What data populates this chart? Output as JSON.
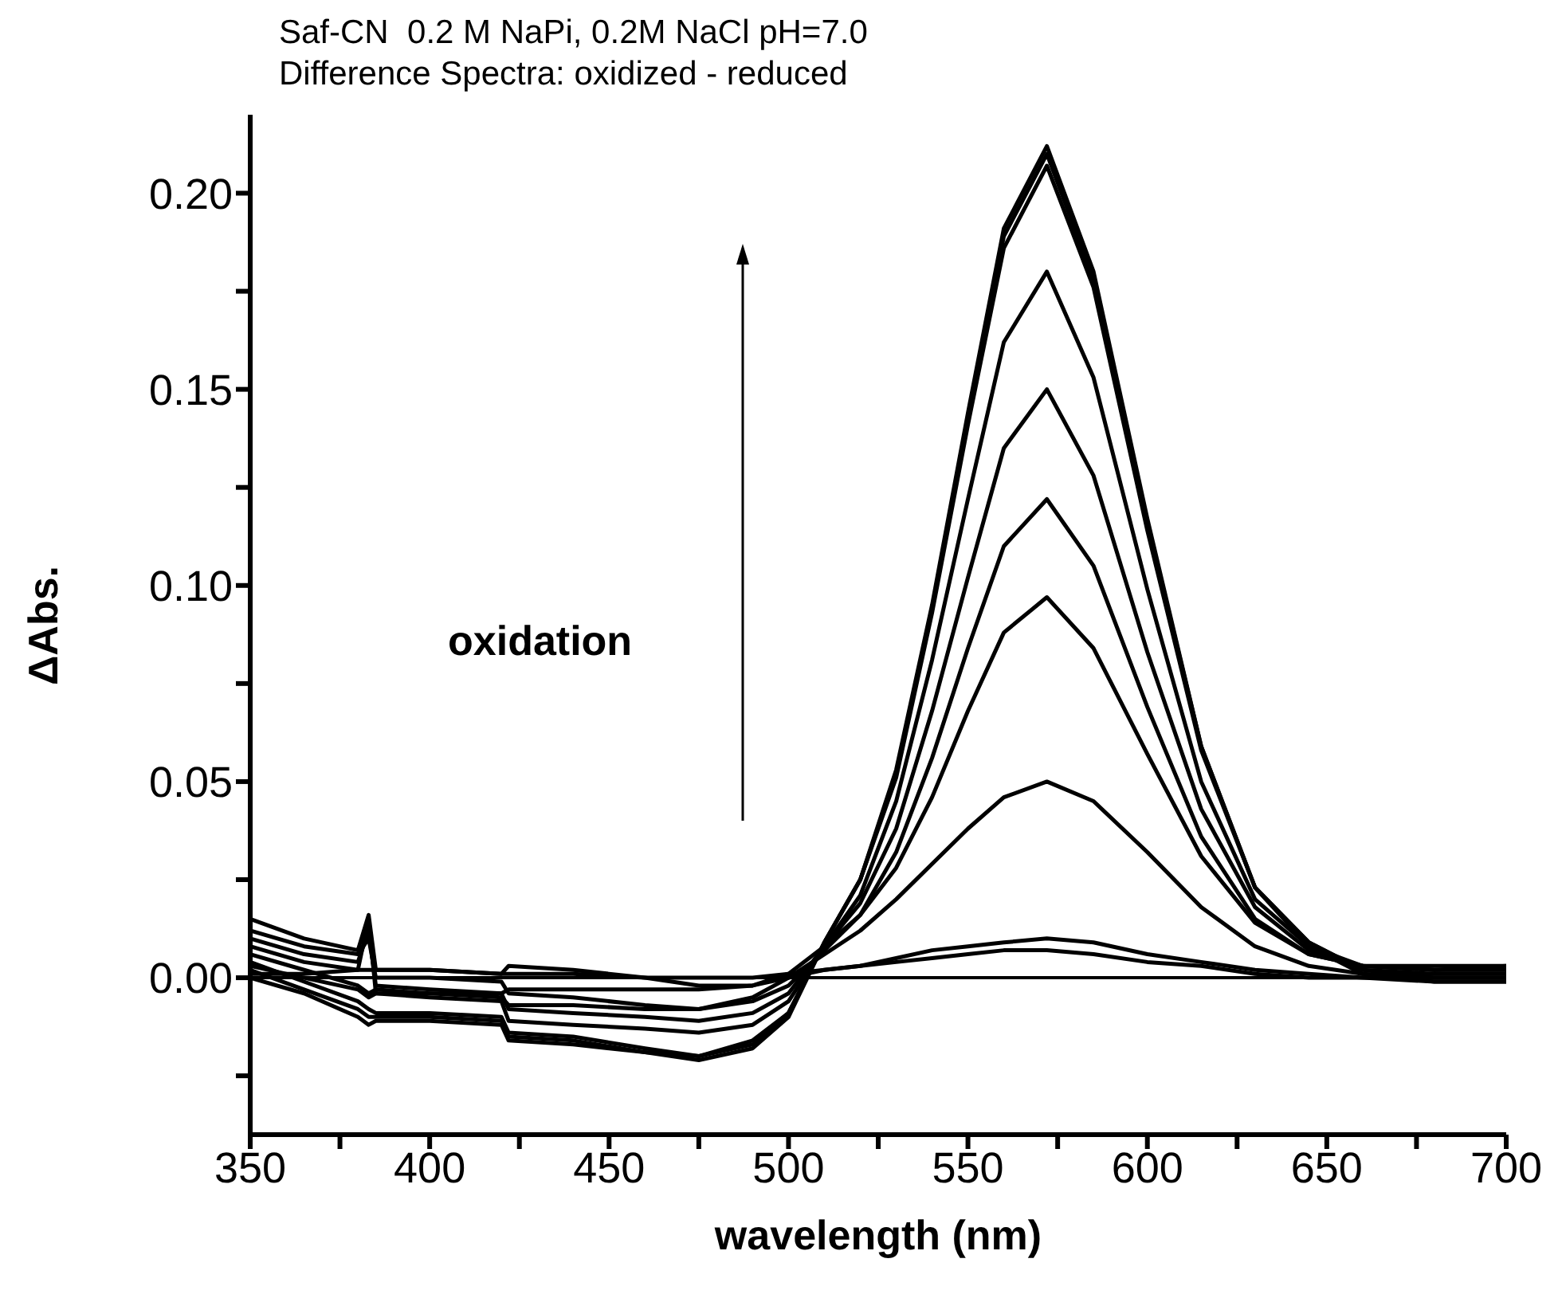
{
  "chart_data": {
    "type": "line",
    "title": "Saf-CN  0.2 M NaPi, 0.2M NaCl pH=7.0",
    "subtitle": "Difference Spectra: oxidized - reduced",
    "xlabel": "wavelength (nm)",
    "ylabel": "ΔAbs.",
    "annotations": [
      "oxidation"
    ],
    "x": [
      350,
      365,
      380,
      383,
      385,
      400,
      420,
      422,
      440,
      460,
      475,
      490,
      500,
      510,
      520,
      530,
      540,
      550,
      560,
      572,
      585,
      600,
      615,
      630,
      645,
      660,
      680,
      700
    ],
    "series": [
      {
        "color": "#000000",
        "values": [
          0.001,
          0.001,
          0.002,
          0.002,
          0.002,
          0.002,
          0.001,
          0.001,
          0.001,
          0.0,
          0.0,
          0.0,
          0.001,
          0.002,
          0.003,
          0.004,
          0.005,
          0.006,
          0.007,
          0.007,
          0.006,
          0.004,
          0.003,
          0.001,
          0.0,
          0.0,
          0.0,
          0.0
        ]
      },
      {
        "color": "#000000",
        "values": [
          0.003,
          0.0,
          -0.003,
          -0.005,
          -0.004,
          -0.004,
          -0.004,
          -0.003,
          -0.003,
          -0.003,
          -0.003,
          -0.002,
          0.0,
          0.002,
          0.003,
          0.005,
          0.007,
          0.008,
          0.009,
          0.01,
          0.009,
          0.006,
          0.004,
          0.002,
          0.001,
          0.0,
          -0.001,
          -0.001
        ]
      },
      {
        "color": "#000000",
        "values": [
          0.006,
          0.002,
          -0.002,
          -0.004,
          -0.003,
          -0.004,
          -0.005,
          -0.007,
          -0.007,
          -0.008,
          -0.008,
          -0.005,
          0.0,
          0.006,
          0.012,
          0.02,
          0.029,
          0.038,
          0.046,
          0.05,
          0.045,
          0.032,
          0.018,
          0.008,
          0.003,
          0.001,
          0.0,
          0.0
        ]
      },
      {
        "color": "#000000",
        "values": [
          0.015,
          0.01,
          0.007,
          0.016,
          0.002,
          0.002,
          0.001,
          0.003,
          0.002,
          0.0,
          -0.002,
          -0.002,
          0.001,
          0.008,
          0.016,
          0.028,
          0.046,
          0.068,
          0.088,
          0.097,
          0.084,
          0.057,
          0.031,
          0.014,
          0.006,
          0.003,
          0.003,
          0.003
        ]
      },
      {
        "color": "#000000",
        "values": [
          0.012,
          0.008,
          0.006,
          0.01,
          0.0,
          0.0,
          -0.001,
          -0.004,
          -0.005,
          -0.007,
          -0.008,
          -0.006,
          -0.002,
          0.007,
          0.016,
          0.032,
          0.056,
          0.084,
          0.11,
          0.122,
          0.105,
          0.069,
          0.036,
          0.015,
          0.006,
          0.003,
          0.002,
          0.003
        ]
      },
      {
        "color": "#000000",
        "values": [
          0.01,
          0.006,
          0.004,
          0.012,
          -0.002,
          -0.003,
          -0.004,
          -0.008,
          -0.009,
          -0.01,
          -0.011,
          -0.009,
          -0.004,
          0.008,
          0.019,
          0.038,
          0.068,
          0.102,
          0.135,
          0.15,
          0.128,
          0.083,
          0.043,
          0.018,
          0.007,
          0.003,
          0.002,
          0.002
        ]
      },
      {
        "color": "#000000",
        "values": [
          0.008,
          0.004,
          0.002,
          0.015,
          -0.004,
          -0.005,
          -0.006,
          -0.011,
          -0.012,
          -0.013,
          -0.014,
          -0.012,
          -0.006,
          0.008,
          0.021,
          0.045,
          0.081,
          0.122,
          0.162,
          0.18,
          0.153,
          0.099,
          0.05,
          0.02,
          0.008,
          0.003,
          0.002,
          0.002
        ]
      },
      {
        "color": "#000000",
        "values": [
          0.0,
          -0.004,
          -0.01,
          -0.012,
          -0.011,
          -0.011,
          -0.012,
          -0.016,
          -0.017,
          -0.019,
          -0.02,
          -0.016,
          -0.009,
          0.009,
          0.025,
          0.051,
          0.093,
          0.141,
          0.186,
          0.207,
          0.176,
          0.114,
          0.058,
          0.023,
          0.009,
          0.002,
          0.001,
          0.001
        ]
      },
      {
        "color": "#000000",
        "values": [
          0.004,
          -0.001,
          -0.006,
          -0.008,
          -0.009,
          -0.009,
          -0.01,
          -0.014,
          -0.015,
          -0.018,
          -0.02,
          -0.017,
          -0.009,
          0.009,
          0.025,
          0.052,
          0.094,
          0.143,
          0.189,
          0.21,
          0.178,
          0.116,
          0.059,
          0.023,
          0.009,
          0.002,
          0.0,
          0.0
        ]
      },
      {
        "color": "#000000",
        "values": [
          0.002,
          -0.003,
          -0.008,
          -0.01,
          -0.01,
          -0.01,
          -0.011,
          -0.015,
          -0.016,
          -0.019,
          -0.021,
          -0.018,
          -0.01,
          0.009,
          0.025,
          0.053,
          0.095,
          0.144,
          0.191,
          0.212,
          0.18,
          0.117,
          0.059,
          0.023,
          0.008,
          0.001,
          -0.001,
          -0.001
        ]
      }
    ],
    "xlim": [
      350,
      700
    ],
    "xticks": [
      350,
      {
        "value": 375,
        "label": null
      },
      400,
      {
        "value": 425,
        "label": null
      },
      450,
      {
        "value": 475,
        "label": null
      },
      500,
      {
        "value": 525,
        "label": null
      },
      550,
      {
        "value": 575,
        "label": null
      },
      600,
      {
        "value": 625,
        "label": null
      },
      650,
      {
        "value": 675,
        "label": null
      },
      700
    ],
    "ylim": [
      -0.04,
      0.22
    ],
    "yticks": [
      {
        "value": -0.025,
        "label": null
      },
      {
        "value": 0,
        "label": "0.00"
      },
      {
        "value": 0.025,
        "label": null
      },
      {
        "value": 0.05,
        "label": "0.05"
      },
      {
        "value": 0.075,
        "label": null
      },
      {
        "value": 0.1,
        "label": "0.10"
      },
      {
        "value": 0.125,
        "label": null
      },
      {
        "value": 0.15,
        "label": "0.15"
      },
      {
        "value": 0.175,
        "label": null
      },
      {
        "value": 0.2,
        "label": "0.20"
      }
    ],
    "ref_lines": [
      {
        "axis": "y",
        "value": 0,
        "color": "#000000"
      }
    ],
    "marker": "none",
    "line_style": "solid"
  }
}
